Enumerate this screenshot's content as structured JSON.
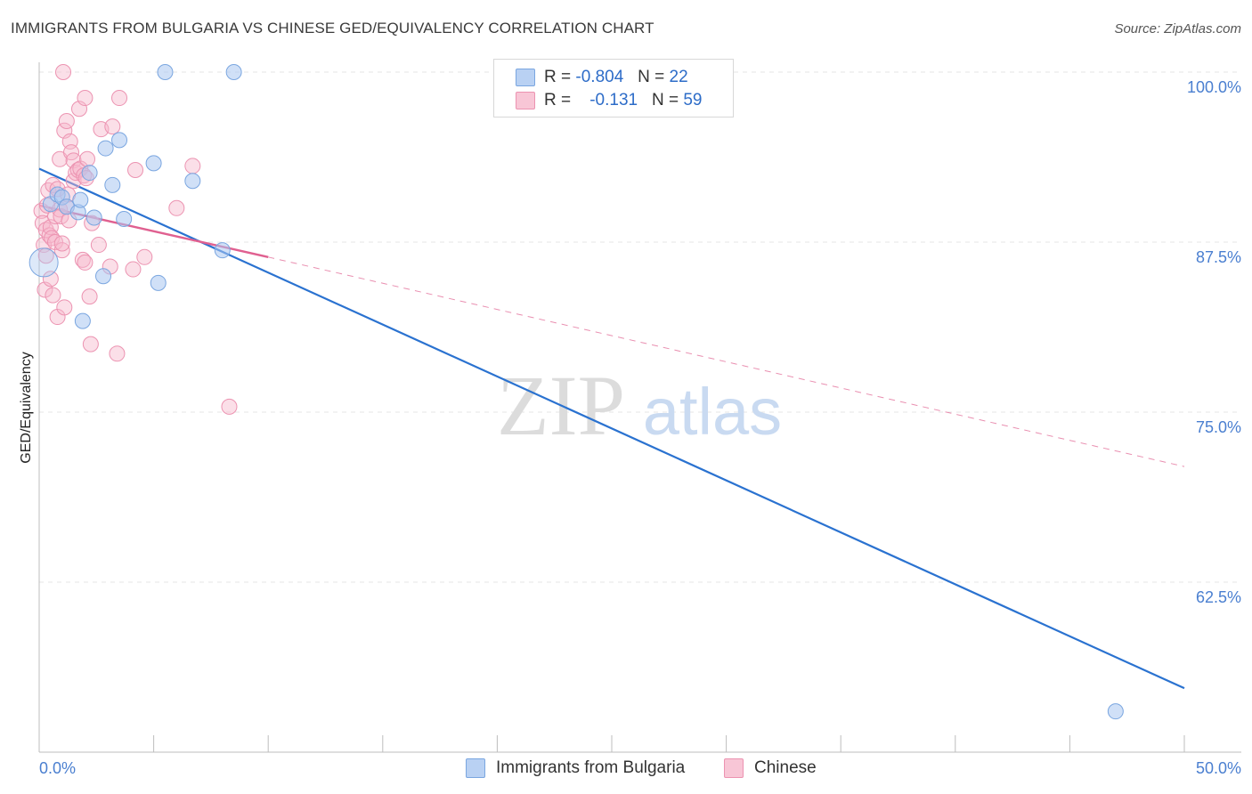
{
  "title": "IMMIGRANTS FROM BULGARIA VS CHINESE GED/EQUIVALENCY CORRELATION CHART",
  "source": "Source: ZipAtlas.com",
  "watermark": {
    "zip": "ZIP",
    "atlas": "atlas"
  },
  "colors": {
    "blue_fill": "#a9c7f0",
    "blue_stroke": "#7aa6e0",
    "blue_line": "#2a72d0",
    "pink_fill": "#f6b8cc",
    "pink_stroke": "#ec93b1",
    "pink_line": "#e06090",
    "tick_text": "#4a7fd0",
    "grid": "#e6e6e6"
  },
  "legend_top": {
    "rows": [
      {
        "r_label": "R =",
        "r_value": "-0.804",
        "n_label": "N =",
        "n_value": "22"
      },
      {
        "r_label": "R =",
        "r_value": "-0.131",
        "n_label": "N =",
        "n_value": "59"
      }
    ]
  },
  "chart_data": {
    "type": "scatter",
    "title": "IMMIGRANTS FROM BULGARIA VS CHINESE GED/EQUIVALENCY CORRELATION CHART",
    "xlabel": "",
    "ylabel": "GED/Equivalency",
    "xlim": [
      0,
      50
    ],
    "ylim": [
      50,
      101
    ],
    "x_tick_labels": [
      "0.0%",
      "50.0%"
    ],
    "y_ticks": [
      100,
      87.5,
      75,
      62.5
    ],
    "y_tick_labels": [
      "100.0%",
      "87.5%",
      "75.0%",
      "62.5%"
    ],
    "series": [
      {
        "name": "Immigrants from Bulgaria",
        "r": -0.804,
        "n": 22,
        "points": [
          [
            0.2,
            86.0
          ],
          [
            0.5,
            90.3
          ],
          [
            0.8,
            91.0
          ],
          [
            1.0,
            90.8
          ],
          [
            1.2,
            90.1
          ],
          [
            1.7,
            89.7
          ],
          [
            1.8,
            90.6
          ],
          [
            2.2,
            92.6
          ],
          [
            2.4,
            89.3
          ],
          [
            2.8,
            85.0
          ],
          [
            2.9,
            94.4
          ],
          [
            3.2,
            91.7
          ],
          [
            3.5,
            95.0
          ],
          [
            3.7,
            89.2
          ],
          [
            5.0,
            93.3
          ],
          [
            5.2,
            84.5
          ],
          [
            5.5,
            100.0
          ],
          [
            6.7,
            92.0
          ],
          [
            8.0,
            86.9
          ],
          [
            8.5,
            100.0
          ],
          [
            1.9,
            81.7
          ],
          [
            47.0,
            53.0
          ]
        ],
        "trend": {
          "x0": 0,
          "y0": 92.9,
          "x1": 50,
          "y1": 54.7
        }
      },
      {
        "name": "Chinese",
        "r": -0.131,
        "n": 59,
        "points": [
          [
            0.1,
            89.8
          ],
          [
            0.15,
            88.9
          ],
          [
            0.2,
            87.3
          ],
          [
            0.25,
            84.0
          ],
          [
            0.3,
            88.4
          ],
          [
            0.3,
            86.5
          ],
          [
            0.35,
            90.2
          ],
          [
            0.4,
            91.3
          ],
          [
            0.45,
            88.0
          ],
          [
            0.5,
            88.6
          ],
          [
            0.5,
            84.8
          ],
          [
            0.55,
            87.8
          ],
          [
            0.6,
            83.6
          ],
          [
            0.6,
            91.7
          ],
          [
            0.7,
            87.5
          ],
          [
            0.7,
            89.4
          ],
          [
            0.8,
            82.0
          ],
          [
            0.8,
            91.4
          ],
          [
            0.9,
            89.9
          ],
          [
            0.9,
            93.6
          ],
          [
            0.95,
            89.4
          ],
          [
            1.0,
            86.9
          ],
          [
            1.0,
            87.4
          ],
          [
            1.05,
            100.0
          ],
          [
            1.1,
            95.7
          ],
          [
            1.1,
            82.7
          ],
          [
            1.2,
            90.1
          ],
          [
            1.2,
            96.4
          ],
          [
            1.25,
            91.0
          ],
          [
            1.3,
            89.1
          ],
          [
            1.35,
            94.9
          ],
          [
            1.4,
            94.1
          ],
          [
            1.5,
            92.0
          ],
          [
            1.5,
            93.5
          ],
          [
            1.6,
            92.6
          ],
          [
            1.7,
            92.8
          ],
          [
            1.75,
            97.3
          ],
          [
            1.8,
            92.9
          ],
          [
            1.9,
            86.2
          ],
          [
            1.95,
            92.4
          ],
          [
            2.0,
            98.1
          ],
          [
            2.0,
            86.0
          ],
          [
            2.05,
            92.2
          ],
          [
            2.1,
            93.6
          ],
          [
            2.2,
            83.5
          ],
          [
            2.25,
            80.0
          ],
          [
            2.3,
            88.9
          ],
          [
            2.6,
            87.3
          ],
          [
            2.7,
            95.8
          ],
          [
            3.1,
            85.7
          ],
          [
            3.2,
            96.0
          ],
          [
            3.4,
            79.3
          ],
          [
            3.5,
            98.1
          ],
          [
            4.1,
            85.5
          ],
          [
            4.2,
            92.8
          ],
          [
            4.6,
            86.4
          ],
          [
            6.0,
            90.0
          ],
          [
            6.7,
            93.1
          ],
          [
            8.3,
            75.4
          ]
        ],
        "trend": {
          "x0": 0,
          "y0": 90.2,
          "x1": 10,
          "y1": 86.4
        },
        "trend_dashed": {
          "x0": 10,
          "y0": 86.4,
          "x1": 50,
          "y1": 71.0
        }
      }
    ],
    "legend": [
      "Immigrants from Bulgaria",
      "Chinese"
    ]
  }
}
